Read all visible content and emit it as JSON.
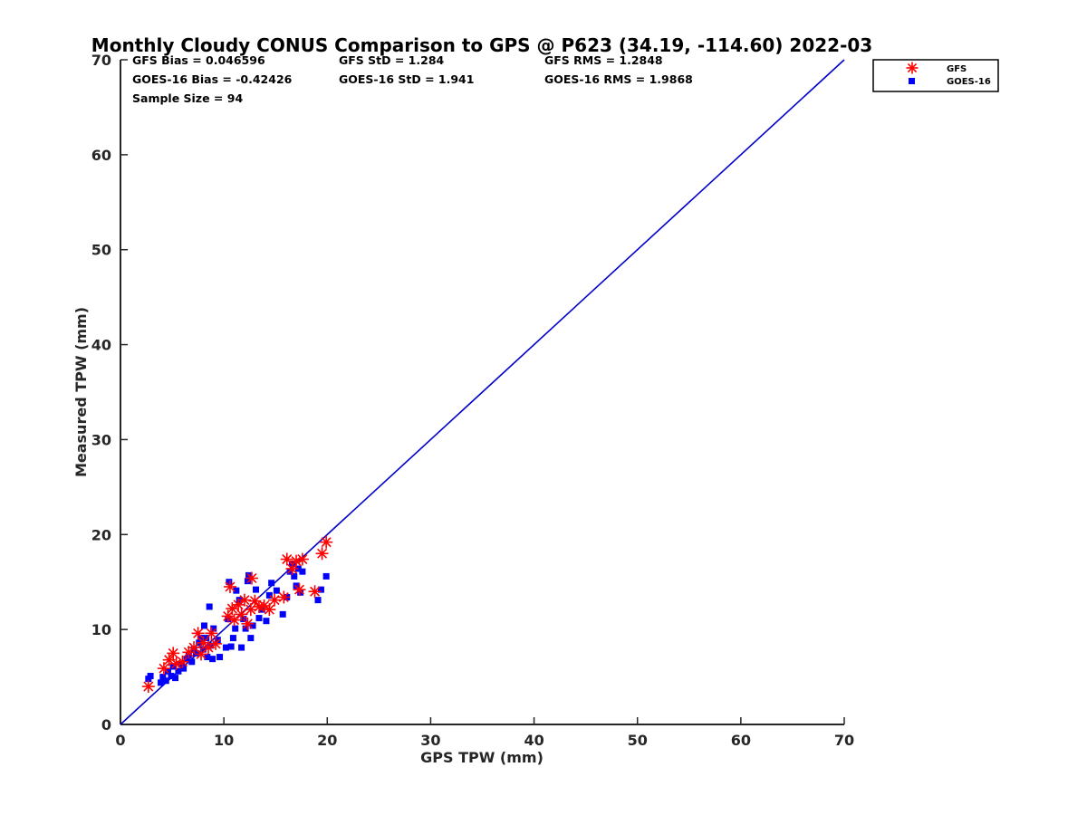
{
  "chart_data": {
    "type": "scatter",
    "title": "Monthly Cloudy CONUS Comparison to GPS @ P623 (34.19, -114.60) 2022-03",
    "xlabel": "GPS TPW (mm)",
    "ylabel": "Measured TPW (mm)",
    "xlim": [
      0,
      70
    ],
    "ylim": [
      0,
      70
    ],
    "xticks": [
      0,
      10,
      20,
      30,
      40,
      50,
      60,
      70
    ],
    "yticks": [
      0,
      10,
      20,
      30,
      40,
      50,
      60,
      70
    ],
    "stats": {
      "gfs_bias": "GFS Bias = 0.046596",
      "goes_bias": "GOES-16 Bias = -0.42426",
      "sample_size": "Sample Size = 94",
      "gfs_std": "GFS StD = 1.284",
      "goes_std": "GOES-16 StD = 1.941",
      "gfs_rms": "GFS RMS = 1.2848",
      "goes_rms": "GOES-16 RMS = 1.9868"
    },
    "legend_position": "outside top-right",
    "reference_line": {
      "x": [
        0,
        70
      ],
      "y": [
        0,
        70
      ],
      "color": "#0000cc"
    },
    "series": [
      {
        "name": "GFS",
        "marker": "asterisk",
        "color": "#ff0000",
        "points": [
          [
            2.7,
            4.0
          ],
          [
            4.2,
            5.9
          ],
          [
            4.7,
            6.8
          ],
          [
            5.1,
            7.5
          ],
          [
            5.4,
            6.4
          ],
          [
            6.0,
            6.6
          ],
          [
            6.6,
            7.6
          ],
          [
            7.1,
            8.1
          ],
          [
            7.5,
            9.6
          ],
          [
            7.8,
            7.4
          ],
          [
            8.0,
            8.6
          ],
          [
            8.5,
            8.1
          ],
          [
            8.8,
            9.6
          ],
          [
            9.2,
            8.5
          ],
          [
            10.4,
            11.4
          ],
          [
            10.6,
            14.5
          ],
          [
            10.8,
            12.2
          ],
          [
            11.0,
            11.0
          ],
          [
            11.4,
            12.6
          ],
          [
            11.7,
            11.6
          ],
          [
            12.0,
            13.1
          ],
          [
            12.3,
            10.6
          ],
          [
            12.6,
            12.1
          ],
          [
            12.7,
            15.4
          ],
          [
            13.0,
            13.0
          ],
          [
            13.4,
            12.4
          ],
          [
            13.9,
            12.5
          ],
          [
            14.4,
            12.1
          ],
          [
            14.9,
            13.1
          ],
          [
            15.8,
            13.4
          ],
          [
            16.1,
            17.4
          ],
          [
            16.6,
            16.4
          ],
          [
            17.0,
            17.2
          ],
          [
            17.3,
            14.2
          ],
          [
            17.6,
            17.4
          ],
          [
            18.8,
            14.0
          ],
          [
            19.5,
            18.0
          ],
          [
            19.9,
            19.2
          ]
        ]
      },
      {
        "name": "GOES-16",
        "marker": "square",
        "color": "#0000ff",
        "points": [
          [
            2.7,
            4.8
          ],
          [
            2.9,
            5.1
          ],
          [
            3.9,
            4.4
          ],
          [
            4.1,
            5.0
          ],
          [
            4.4,
            4.6
          ],
          [
            4.6,
            5.6
          ],
          [
            4.9,
            5.1
          ],
          [
            5.1,
            6.1
          ],
          [
            5.3,
            4.9
          ],
          [
            5.6,
            5.6
          ],
          [
            5.9,
            6.3
          ],
          [
            6.1,
            5.9
          ],
          [
            6.4,
            6.9
          ],
          [
            6.6,
            7.3
          ],
          [
            6.9,
            6.6
          ],
          [
            7.1,
            7.9
          ],
          [
            7.3,
            7.5
          ],
          [
            7.6,
            8.6
          ],
          [
            7.8,
            9.1
          ],
          [
            8.0,
            7.9
          ],
          [
            8.1,
            10.4
          ],
          [
            8.3,
            9.1
          ],
          [
            8.4,
            7.1
          ],
          [
            8.6,
            12.4
          ],
          [
            8.7,
            8.3
          ],
          [
            8.9,
            6.9
          ],
          [
            9.0,
            10.1
          ],
          [
            9.4,
            8.9
          ],
          [
            9.6,
            7.1
          ],
          [
            10.2,
            8.1
          ],
          [
            10.4,
            11.1
          ],
          [
            10.5,
            15.0
          ],
          [
            10.7,
            8.2
          ],
          [
            10.9,
            9.1
          ],
          [
            11.1,
            10.1
          ],
          [
            11.2,
            14.1
          ],
          [
            11.5,
            13.1
          ],
          [
            11.7,
            8.1
          ],
          [
            11.9,
            11.1
          ],
          [
            12.1,
            10.1
          ],
          [
            12.3,
            15.1
          ],
          [
            12.4,
            15.7
          ],
          [
            12.6,
            9.1
          ],
          [
            12.8,
            10.4
          ],
          [
            13.1,
            14.2
          ],
          [
            13.4,
            11.2
          ],
          [
            13.7,
            12.1
          ],
          [
            14.1,
            10.9
          ],
          [
            14.4,
            13.6
          ],
          [
            14.6,
            14.9
          ],
          [
            15.1,
            14.1
          ],
          [
            15.7,
            11.6
          ],
          [
            16.1,
            13.4
          ],
          [
            16.4,
            16.1
          ],
          [
            16.6,
            16.9
          ],
          [
            16.8,
            15.6
          ],
          [
            17.0,
            14.6
          ],
          [
            17.2,
            16.4
          ],
          [
            17.4,
            13.9
          ],
          [
            17.6,
            16.1
          ],
          [
            19.1,
            13.1
          ],
          [
            19.4,
            14.2
          ],
          [
            19.9,
            15.6
          ]
        ]
      }
    ]
  }
}
